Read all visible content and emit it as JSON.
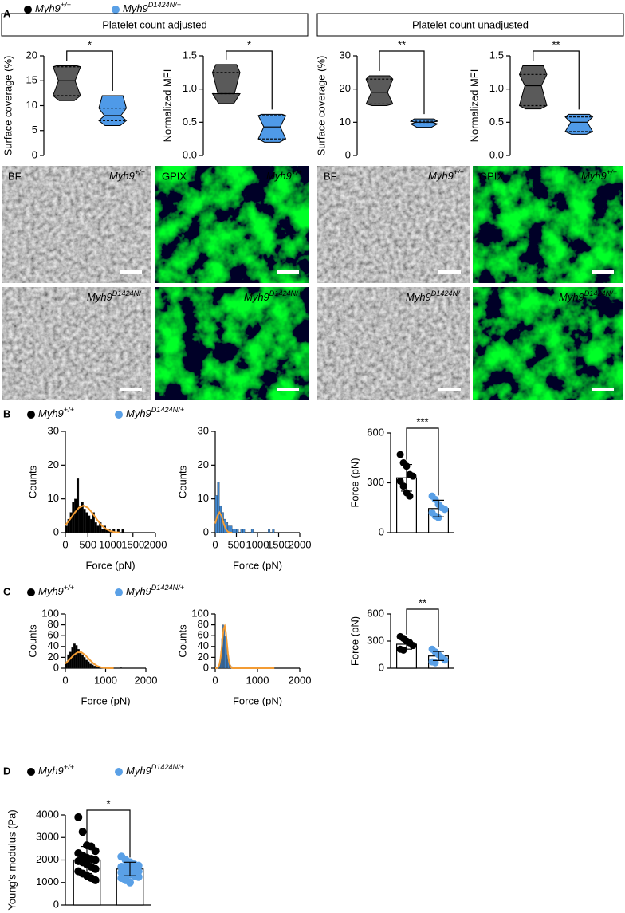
{
  "legend": [
    {
      "name": "Myh9",
      "sup": "+/+",
      "color": "#000000"
    },
    {
      "name": "Myh9",
      "sup": "D1424N/+",
      "color": "#5aa0e6"
    }
  ],
  "panels": [
    "A",
    "B",
    "C",
    "D"
  ],
  "sections": [
    "Platelet count adjusted",
    "Platelet count unadjusted"
  ],
  "images": [
    {
      "channel": "BF",
      "name": "Myh9",
      "sup": "+/+"
    },
    {
      "channel": "GPIX",
      "name": "Myh9",
      "sup": "+/+"
    },
    {
      "channel": "BF",
      "name": "Myh9",
      "sup": "+/+"
    },
    {
      "channel": "GPIX",
      "name": "Myh9",
      "sup": "+/+"
    },
    {
      "name": "Myh9",
      "sup": "D1424N/+"
    },
    {
      "name": "Myh9",
      "sup": "D1424N/+"
    },
    {
      "name": "Myh9",
      "sup": "D1424N/+"
    },
    {
      "name": "Myh9",
      "sup": "D1424N/+"
    }
  ],
  "chart_data": [
    {
      "type": "violin",
      "ylabel": "Surface coverage (%)",
      "ylim": [
        0,
        20
      ],
      "yticks": [
        0,
        5,
        10,
        15,
        20
      ],
      "significance": "*",
      "groups": [
        {
          "color": "#5a5a5a",
          "min": 11,
          "q1": 12,
          "median": 15,
          "q3": 17.8,
          "max": 18
        },
        {
          "color": "#4f9ae8",
          "min": 6,
          "q1": 7,
          "median": 8,
          "q3": 9.5,
          "max": 12
        }
      ]
    },
    {
      "type": "violin",
      "ylabel": "Normalized MFI",
      "ylim": [
        0,
        1.5
      ],
      "yticks": [
        {
          "value": 0,
          "label": "0.0"
        },
        {
          "value": 0.5,
          "label": "0.5"
        },
        {
          "value": 1,
          "label": "1.0"
        },
        {
          "value": 1.5,
          "label": "1.5"
        }
      ],
      "significance": "*",
      "groups": [
        {
          "color": "#5a5a5a",
          "min": 0.78,
          "q1": 0.93,
          "median": 0.93,
          "q3": 1.25,
          "max": 1.37
        },
        {
          "color": "#4f9ae8",
          "min": 0.2,
          "q1": 0.25,
          "median": 0.43,
          "q3": 0.6,
          "max": 0.62
        }
      ]
    },
    {
      "type": "violin",
      "ylabel": "Surface coverage (%)",
      "ylim": [
        0,
        30
      ],
      "yticks": [
        0,
        10,
        20,
        30
      ],
      "significance": "**",
      "groups": [
        {
          "color": "#5a5a5a",
          "min": 15,
          "q1": 15.5,
          "median": 19,
          "q3": 23,
          "max": 24
        },
        {
          "color": "#4f9ae8",
          "min": 8.5,
          "q1": 9.5,
          "median": 10,
          "q3": 10.3,
          "max": 11
        }
      ]
    },
    {
      "type": "violin",
      "ylabel": "Normalized MFI",
      "ylim": [
        0,
        1.5
      ],
      "yticks": [
        {
          "value": 0,
          "label": "0.0"
        },
        {
          "value": 0.5,
          "label": "0.5"
        },
        {
          "value": 1,
          "label": "1.0"
        },
        {
          "value": 1.5,
          "label": "1.5"
        }
      ],
      "significance": "**",
      "groups": [
        {
          "color": "#5a5a5a",
          "min": 0.7,
          "q1": 0.75,
          "median": 1.05,
          "q3": 1.22,
          "max": 1.35
        },
        {
          "color": "#4f9ae8",
          "min": 0.32,
          "q1": 0.36,
          "median": 0.5,
          "q3": 0.58,
          "max": 0.62
        }
      ]
    },
    {
      "type": "histogram",
      "xlabel": "Force (pN)",
      "ylabel": "Counts",
      "color": "#000000",
      "xlim": [
        0,
        2000
      ],
      "xticks": [
        0,
        500,
        1000,
        1500,
        2000
      ],
      "ylim": [
        0,
        30
      ],
      "yticks": [
        0,
        10,
        20,
        30
      ],
      "bins": [
        0,
        50,
        100,
        150,
        200,
        250,
        300,
        350,
        400,
        450,
        500,
        550,
        600,
        650,
        700,
        750,
        800,
        850,
        900,
        950,
        1000,
        1050,
        1100,
        1150,
        1200,
        1250,
        1300
      ],
      "values": [
        2,
        4,
        6,
        9,
        10,
        16,
        8,
        9,
        7,
        6,
        5,
        4,
        6,
        3,
        2,
        3,
        1,
        2,
        1,
        1,
        0,
        1,
        0,
        1,
        0,
        1
      ],
      "fit": {
        "color": "#f39c34",
        "x": [
          0,
          100,
          200,
          300,
          400,
          500,
          600,
          700,
          800,
          900,
          1000,
          1100,
          1200
        ],
        "values": [
          2.2,
          3.9,
          5.8,
          7.4,
          8,
          7.4,
          5.8,
          3.9,
          2.2,
          1.1,
          0.45,
          0.16,
          0.05
        ]
      }
    },
    {
      "type": "histogram",
      "xlabel": "Force (pN)",
      "ylabel": "Counts",
      "color": "#3f86cf",
      "xlim": [
        0,
        2000
      ],
      "xticks": [
        0,
        500,
        1000,
        1500,
        2000
      ],
      "ylim": [
        0,
        30
      ],
      "yticks": [
        0,
        10,
        20,
        30
      ],
      "bins": [
        0,
        50,
        100,
        150,
        200,
        250,
        300,
        350,
        400,
        450,
        500,
        550,
        600,
        650,
        700,
        750,
        800,
        850,
        900,
        950,
        1000,
        1050,
        1100,
        1150,
        1200,
        1250,
        1300,
        1350,
        1400
      ],
      "values": [
        11,
        15,
        8,
        6,
        4,
        3,
        2,
        2,
        1,
        1,
        1,
        0,
        1,
        1,
        0,
        0,
        0,
        1,
        0,
        0,
        0,
        0,
        0,
        0,
        0,
        1,
        0,
        1
      ],
      "fit": {
        "color": "#f39c34",
        "x": [
          0,
          50,
          100,
          150,
          200,
          250,
          300,
          350,
          400
        ],
        "values": [
          2.7,
          4.9,
          6,
          4.9,
          2.7,
          1,
          0.26,
          0.05,
          0.01
        ]
      }
    },
    {
      "type": "bar",
      "ylabel": "Force (pN)",
      "ylim": [
        0,
        600
      ],
      "yticks": [
        0,
        300,
        600
      ],
      "significance": "***",
      "series": [
        {
          "color": "#000000",
          "values": [
            330
          ],
          "error": [
            80
          ],
          "points": [
            470,
            420,
            400,
            350,
            340,
            310,
            280,
            240,
            220
          ]
        },
        {
          "color": "#5aa0e6",
          "values": [
            145
          ],
          "error": [
            50
          ],
          "points": [
            220,
            200,
            170,
            150,
            140,
            120,
            100,
            90
          ]
        }
      ]
    },
    {
      "type": "histogram",
      "xlabel": "Force (pN)",
      "ylabel": "Counts",
      "color": "#000000",
      "xlim": [
        0,
        2000
      ],
      "xticks": [
        0,
        1000,
        2000
      ],
      "ylim": [
        0,
        100
      ],
      "yticks": [
        0,
        20,
        40,
        60,
        80,
        100
      ],
      "bins": [
        0,
        50,
        100,
        150,
        200,
        250,
        300,
        350,
        400,
        450,
        500,
        550,
        600,
        650,
        700,
        750,
        800,
        850,
        900,
        950,
        1000,
        1050,
        1100,
        1150,
        1200,
        1250,
        1300,
        1350,
        1400
      ],
      "values": [
        10,
        25,
        30,
        38,
        45,
        42,
        35,
        30,
        25,
        20,
        15,
        12,
        8,
        6,
        4,
        3,
        2,
        2,
        1,
        1,
        1,
        0,
        1,
        0,
        0,
        0,
        0,
        1
      ],
      "fit": {
        "color": "#f39c34",
        "x": [
          0,
          100,
          200,
          300,
          400,
          500,
          600,
          700,
          800,
          900,
          1000,
          1100,
          1200
        ],
        "values": [
          8.5,
          15.7,
          23.8,
          29.2,
          29.2,
          23.8,
          15.7,
          8.5,
          3.7,
          1.3,
          0.38,
          0.09,
          0.02
        ]
      }
    },
    {
      "type": "histogram",
      "xlabel": "Force (pN)",
      "ylabel": "Counts",
      "color": "#3f86cf",
      "xlim": [
        0,
        2000
      ],
      "xticks": [
        0,
        1000,
        2000
      ],
      "ylim": [
        0,
        100
      ],
      "yticks": [
        0,
        20,
        40,
        60,
        80,
        100
      ],
      "bins": [
        0,
        25,
        50,
        75,
        100,
        125,
        150,
        175,
        200,
        225,
        250,
        275,
        300,
        325,
        350,
        375,
        400,
        425,
        450,
        475,
        500,
        525,
        550,
        575,
        600,
        625,
        650,
        675,
        700
      ],
      "values": [
        0,
        0,
        2,
        5,
        12,
        30,
        55,
        80,
        75,
        60,
        40,
        25,
        15,
        8,
        5,
        3,
        2,
        1,
        1,
        0,
        1,
        0,
        0,
        0,
        0,
        0,
        0,
        1
      ],
      "fit": {
        "color": "#f39c34",
        "x": [
          0,
          25,
          50,
          75,
          100,
          125,
          150,
          175,
          200,
          225,
          250,
          275,
          300,
          325,
          350,
          375,
          400,
          425,
          450,
          1400
        ],
        "values": [
          0.03,
          0.15,
          0.65,
          2.4,
          7.2,
          17.6,
          34.7,
          55.8,
          73,
          77.7,
          67.2,
          47.3,
          27.1,
          12.6,
          4.8,
          1.5,
          0.37,
          0.08,
          0.01,
          0
        ]
      }
    },
    {
      "type": "bar",
      "ylabel": "Force (pN)",
      "ylim": [
        0,
        600
      ],
      "yticks": [
        0,
        300,
        600
      ],
      "significance": "**",
      "series": [
        {
          "color": "#000000",
          "values": [
            265
          ],
          "error": [
            55
          ],
          "points": [
            350,
            330,
            300,
            280,
            250,
            210,
            200
          ]
        },
        {
          "color": "#5aa0e6",
          "values": [
            135
          ],
          "error": [
            50
          ],
          "points": [
            210,
            180,
            150,
            120,
            90,
            70,
            60
          ]
        }
      ]
    },
    {
      "type": "bar",
      "ylabel": "Young's modulus (Pa)",
      "ylim": [
        0,
        4000
      ],
      "yticks": [
        0,
        1000,
        2000,
        3000,
        4000
      ],
      "significance": "*",
      "series": [
        {
          "color": "#000000",
          "values": [
            2000
          ],
          "error": [
            600
          ],
          "points": [
            3900,
            3250,
            2650,
            2600,
            2400,
            2300,
            2200,
            2100,
            2050,
            2000,
            1950,
            1900,
            1800,
            1700,
            1600,
            1500,
            1400,
            1300,
            1200,
            1100
          ]
        },
        {
          "color": "#5aa0e6",
          "values": [
            1600
          ],
          "error": [
            300
          ],
          "points": [
            2150,
            2000,
            1900,
            1800,
            1750,
            1700,
            1650,
            1600,
            1550,
            1500,
            1450,
            1400,
            1350,
            1300,
            1250,
            1200,
            1100,
            1000
          ]
        }
      ]
    }
  ]
}
